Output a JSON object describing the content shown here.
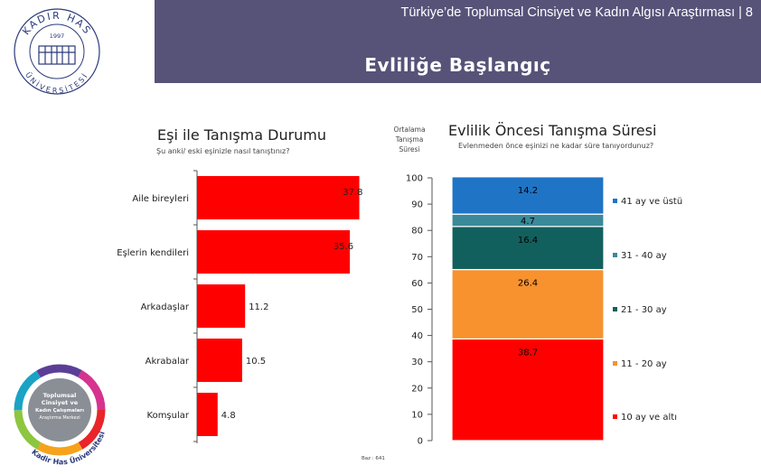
{
  "header": {
    "survey_title": "Türkiye’de Toplumsal Cinsiyet ve Kadın Algısı Araştırması | 8",
    "page_title": "Evliliğe Başlangıç"
  },
  "logos": {
    "top": {
      "ring_text_top": "KADIR HAS",
      "ring_text_bottom": "ÜNİVERSİTESİ",
      "year": "1997"
    },
    "bottom": {
      "line1": "Toplumsal",
      "line2": "Cinsiyet ve",
      "line3": "Kadın Çalışmaları",
      "line4": "Araştırma Merkezi",
      "arc_text": "Kadir Has Üniversitesi"
    }
  },
  "left_panel": {
    "title": "Eşi ile Tanışma Durumu",
    "subtitle": "Şu anki/ eski eşinizle nasıl tanıştınız?"
  },
  "right_panel": {
    "avg_label_line1": "Ortalama",
    "avg_label_line2": "Tanışma",
    "avg_label_line3": "Süresi",
    "title": "Evlilik Öncesi Tanışma Süresi",
    "subtitle": "Evlenmeden önce eşinizi ne kadar süre tanıyordunuz?"
  },
  "base_note": "Baz : 641",
  "colors": {
    "header_band": "#575278",
    "bar_red": "#ff0000"
  },
  "chart_data": [
    {
      "type": "bar",
      "orientation": "horizontal",
      "title": "Eşi ile Tanışma Durumu",
      "categories": [
        "Aile bireyleri",
        "Eşlerin kendileri",
        "Arkadaşlar",
        "Akrabalar",
        "Komşular"
      ],
      "values": [
        37.8,
        35.6,
        11.2,
        10.5,
        4.8
      ],
      "value_labels": [
        "37.8",
        "35.6",
        "11.2",
        "10.5",
        "4.8"
      ],
      "xlim": [
        0,
        40
      ],
      "color": "#ff0000"
    },
    {
      "type": "bar",
      "stacked": true,
      "title": "Evlilik Öncesi Tanışma Süresi",
      "ylim": [
        0,
        100
      ],
      "yticks": [
        "0",
        "10",
        "20",
        "30",
        "40",
        "50",
        "60",
        "70",
        "80",
        "90",
        "100"
      ],
      "series": [
        {
          "name": "10 ay ve altı",
          "value": 38.7,
          "label": "38.7",
          "color": "#ff0000"
        },
        {
          "name": "11 - 20 ay",
          "value": 26.4,
          "label": "26.4",
          "color": "#f7922f"
        },
        {
          "name": "21 - 30 ay",
          "value": 16.4,
          "label": "16.4",
          "color": "#12605e"
        },
        {
          "name": "31 - 40 ay",
          "value": 4.7,
          "label": "4.7",
          "color": "#3b8a99"
        },
        {
          "name": "41 ay ve üstü",
          "value": 14.2,
          "label": "14.2",
          "color": "#1f74c5"
        }
      ]
    }
  ]
}
